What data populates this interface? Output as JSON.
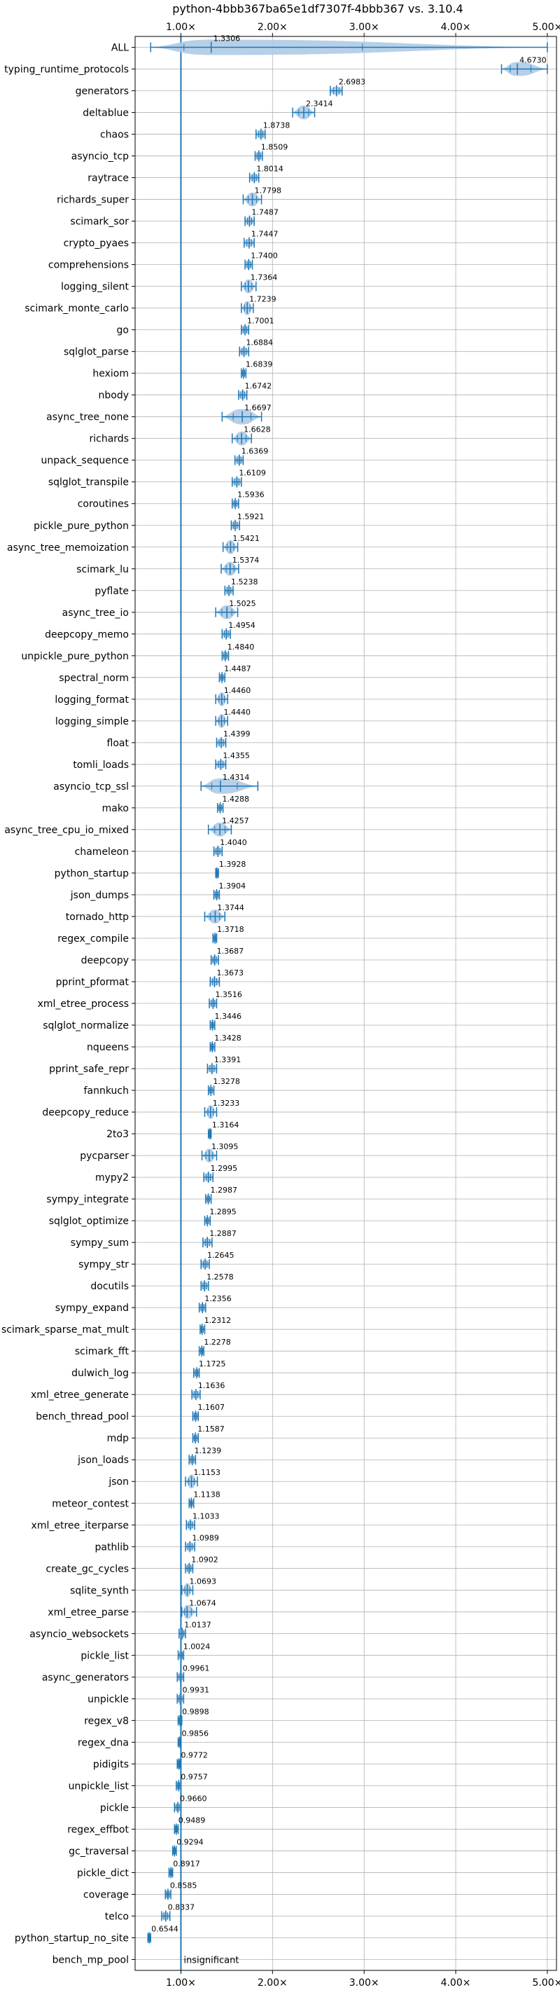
{
  "chart_data": {
    "type": "violin",
    "title": "python-4bbb367ba65e1df7307f-4bbb367 vs. 3.10.4",
    "xlim": [
      0.5,
      5.1
    ],
    "x_ticks": [
      1,
      2,
      3,
      4,
      5
    ],
    "x_tick_labels": [
      "1.00×",
      "2.00×",
      "3.00×",
      "4.00×",
      "5.00×"
    ],
    "grid": true,
    "reference_line": 1.0,
    "insignificant_label": "insignificant",
    "benchmarks": [
      {
        "name": "ALL",
        "value": 1.3306,
        "label": "1.3306",
        "lo": 0.67,
        "hi": 5.0,
        "spread": "wide"
      },
      {
        "name": "typing_runtime_protocols",
        "value": 4.673,
        "label": "4.6730",
        "lo": 4.5,
        "hi": 5.0,
        "spread": "med"
      },
      {
        "name": "generators",
        "value": 2.6983,
        "label": "2.6983",
        "lo": 2.63,
        "hi": 2.76,
        "spread": "small"
      },
      {
        "name": "deltablue",
        "value": 2.3414,
        "label": "2.3414",
        "lo": 2.22,
        "hi": 2.46,
        "spread": "med"
      },
      {
        "name": "chaos",
        "value": 1.8738,
        "label": "1.8738",
        "lo": 1.82,
        "hi": 1.92,
        "spread": "small"
      },
      {
        "name": "asyncio_tcp",
        "value": 1.8509,
        "label": "1.8509",
        "lo": 1.81,
        "hi": 1.89,
        "spread": "small"
      },
      {
        "name": "raytrace",
        "value": 1.8014,
        "label": "1.8014",
        "lo": 1.75,
        "hi": 1.85,
        "spread": "small"
      },
      {
        "name": "richards_super",
        "value": 1.7798,
        "label": "1.7798",
        "lo": 1.68,
        "hi": 1.88,
        "spread": "med"
      },
      {
        "name": "scimark_sor",
        "value": 1.7487,
        "label": "1.7487",
        "lo": 1.7,
        "hi": 1.8,
        "spread": "small"
      },
      {
        "name": "crypto_pyaes",
        "value": 1.7447,
        "label": "1.7447",
        "lo": 1.69,
        "hi": 1.8,
        "spread": "small"
      },
      {
        "name": "comprehensions",
        "value": 1.74,
        "label": "1.7400",
        "lo": 1.7,
        "hi": 1.78,
        "spread": "small"
      },
      {
        "name": "logging_silent",
        "value": 1.7364,
        "label": "1.7364",
        "lo": 1.66,
        "hi": 1.82,
        "spread": "med"
      },
      {
        "name": "scimark_monte_carlo",
        "value": 1.7239,
        "label": "1.7239",
        "lo": 1.66,
        "hi": 1.79,
        "spread": "med"
      },
      {
        "name": "go",
        "value": 1.7001,
        "label": "1.7001",
        "lo": 1.66,
        "hi": 1.74,
        "spread": "small"
      },
      {
        "name": "sqlglot_parse",
        "value": 1.6884,
        "label": "1.6884",
        "lo": 1.64,
        "hi": 1.74,
        "spread": "small"
      },
      {
        "name": "hexiom",
        "value": 1.6839,
        "label": "1.6839",
        "lo": 1.66,
        "hi": 1.71,
        "spread": "tiny"
      },
      {
        "name": "nbody",
        "value": 1.6742,
        "label": "1.6742",
        "lo": 1.63,
        "hi": 1.72,
        "spread": "small"
      },
      {
        "name": "async_tree_none",
        "value": 1.6697,
        "label": "1.6697",
        "lo": 1.45,
        "hi": 1.88,
        "spread": "wide"
      },
      {
        "name": "richards",
        "value": 1.6628,
        "label": "1.6628",
        "lo": 1.56,
        "hi": 1.77,
        "spread": "med"
      },
      {
        "name": "unpack_sequence",
        "value": 1.6369,
        "label": "1.6369",
        "lo": 1.59,
        "hi": 1.68,
        "spread": "small"
      },
      {
        "name": "sqlglot_transpile",
        "value": 1.6109,
        "label": "1.6109",
        "lo": 1.56,
        "hi": 1.66,
        "spread": "small"
      },
      {
        "name": "coroutines",
        "value": 1.5936,
        "label": "1.5936",
        "lo": 1.56,
        "hi": 1.63,
        "spread": "tiny"
      },
      {
        "name": "pickle_pure_python",
        "value": 1.5921,
        "label": "1.5921",
        "lo": 1.55,
        "hi": 1.64,
        "spread": "small"
      },
      {
        "name": "async_tree_memoization",
        "value": 1.5421,
        "label": "1.5421",
        "lo": 1.46,
        "hi": 1.62,
        "spread": "med"
      },
      {
        "name": "scimark_lu",
        "value": 1.5374,
        "label": "1.5374",
        "lo": 1.44,
        "hi": 1.63,
        "spread": "med"
      },
      {
        "name": "pyflate",
        "value": 1.5238,
        "label": "1.5238",
        "lo": 1.48,
        "hi": 1.57,
        "spread": "small"
      },
      {
        "name": "async_tree_io",
        "value": 1.5025,
        "label": "1.5025",
        "lo": 1.38,
        "hi": 1.62,
        "spread": "med"
      },
      {
        "name": "deepcopy_memo",
        "value": 1.4954,
        "label": "1.4954",
        "lo": 1.45,
        "hi": 1.54,
        "spread": "small"
      },
      {
        "name": "unpickle_pure_python",
        "value": 1.484,
        "label": "1.4840",
        "lo": 1.45,
        "hi": 1.52,
        "spread": "small"
      },
      {
        "name": "spectral_norm",
        "value": 1.4487,
        "label": "1.4487",
        "lo": 1.42,
        "hi": 1.48,
        "spread": "tiny"
      },
      {
        "name": "logging_format",
        "value": 1.446,
        "label": "1.4460",
        "lo": 1.38,
        "hi": 1.51,
        "spread": "med"
      },
      {
        "name": "logging_simple",
        "value": 1.444,
        "label": "1.4440",
        "lo": 1.38,
        "hi": 1.51,
        "spread": "med"
      },
      {
        "name": "float",
        "value": 1.4399,
        "label": "1.4399",
        "lo": 1.39,
        "hi": 1.49,
        "spread": "small"
      },
      {
        "name": "tomli_loads",
        "value": 1.4355,
        "label": "1.4355",
        "lo": 1.38,
        "hi": 1.49,
        "spread": "small"
      },
      {
        "name": "asyncio_tcp_ssl",
        "value": 1.4314,
        "label": "1.4314",
        "lo": 1.22,
        "hi": 1.84,
        "spread": "wide"
      },
      {
        "name": "mako",
        "value": 1.4288,
        "label": "1.4288",
        "lo": 1.4,
        "hi": 1.46,
        "spread": "tiny"
      },
      {
        "name": "async_tree_cpu_io_mixed",
        "value": 1.4257,
        "label": "1.4257",
        "lo": 1.3,
        "hi": 1.55,
        "spread": "med"
      },
      {
        "name": "chameleon",
        "value": 1.404,
        "label": "1.4040",
        "lo": 1.36,
        "hi": 1.45,
        "spread": "small"
      },
      {
        "name": "python_startup",
        "value": 1.3928,
        "label": "1.3928",
        "lo": 1.38,
        "hi": 1.41,
        "spread": "tiny"
      },
      {
        "name": "json_dumps",
        "value": 1.3904,
        "label": "1.3904",
        "lo": 1.36,
        "hi": 1.42,
        "spread": "small"
      },
      {
        "name": "tornado_http",
        "value": 1.3744,
        "label": "1.3744",
        "lo": 1.26,
        "hi": 1.48,
        "spread": "med"
      },
      {
        "name": "regex_compile",
        "value": 1.3718,
        "label": "1.3718",
        "lo": 1.35,
        "hi": 1.39,
        "spread": "tiny"
      },
      {
        "name": "deepcopy",
        "value": 1.3687,
        "label": "1.3687",
        "lo": 1.33,
        "hi": 1.41,
        "spread": "small"
      },
      {
        "name": "pprint_pformat",
        "value": 1.3673,
        "label": "1.3673",
        "lo": 1.32,
        "hi": 1.42,
        "spread": "small"
      },
      {
        "name": "xml_etree_process",
        "value": 1.3516,
        "label": "1.3516",
        "lo": 1.31,
        "hi": 1.39,
        "spread": "small"
      },
      {
        "name": "sqlglot_normalize",
        "value": 1.3446,
        "label": "1.3446",
        "lo": 1.32,
        "hi": 1.37,
        "spread": "tiny"
      },
      {
        "name": "nqueens",
        "value": 1.3428,
        "label": "1.3428",
        "lo": 1.32,
        "hi": 1.37,
        "spread": "tiny"
      },
      {
        "name": "pprint_safe_repr",
        "value": 1.3391,
        "label": "1.3391",
        "lo": 1.29,
        "hi": 1.39,
        "spread": "small"
      },
      {
        "name": "fannkuch",
        "value": 1.3278,
        "label": "1.3278",
        "lo": 1.3,
        "hi": 1.36,
        "spread": "tiny"
      },
      {
        "name": "deepcopy_reduce",
        "value": 1.3233,
        "label": "1.3233",
        "lo": 1.26,
        "hi": 1.39,
        "spread": "med"
      },
      {
        "name": "2to3",
        "value": 1.3164,
        "label": "1.3164",
        "lo": 1.3,
        "hi": 1.33,
        "spread": "tiny"
      },
      {
        "name": "pycparser",
        "value": 1.3095,
        "label": "1.3095",
        "lo": 1.23,
        "hi": 1.39,
        "spread": "med"
      },
      {
        "name": "mypy2",
        "value": 1.2995,
        "label": "1.2995",
        "lo": 1.25,
        "hi": 1.35,
        "spread": "small"
      },
      {
        "name": "sympy_integrate",
        "value": 1.2987,
        "label": "1.2987",
        "lo": 1.27,
        "hi": 1.33,
        "spread": "tiny"
      },
      {
        "name": "sqlglot_optimize",
        "value": 1.2895,
        "label": "1.2895",
        "lo": 1.26,
        "hi": 1.32,
        "spread": "tiny"
      },
      {
        "name": "sympy_sum",
        "value": 1.2887,
        "label": "1.2887",
        "lo": 1.24,
        "hi": 1.34,
        "spread": "small"
      },
      {
        "name": "sympy_str",
        "value": 1.2645,
        "label": "1.2645",
        "lo": 1.22,
        "hi": 1.31,
        "spread": "small"
      },
      {
        "name": "docutils",
        "value": 1.2578,
        "label": "1.2578",
        "lo": 1.22,
        "hi": 1.3,
        "spread": "small"
      },
      {
        "name": "sympy_expand",
        "value": 1.2356,
        "label": "1.2356",
        "lo": 1.2,
        "hi": 1.27,
        "spread": "small"
      },
      {
        "name": "scimark_sparse_mat_mult",
        "value": 1.2312,
        "label": "1.2312",
        "lo": 1.21,
        "hi": 1.26,
        "spread": "tiny"
      },
      {
        "name": "scimark_fft",
        "value": 1.2278,
        "label": "1.2278",
        "lo": 1.2,
        "hi": 1.25,
        "spread": "tiny"
      },
      {
        "name": "dulwich_log",
        "value": 1.1725,
        "label": "1.1725",
        "lo": 1.14,
        "hi": 1.2,
        "spread": "small"
      },
      {
        "name": "xml_etree_generate",
        "value": 1.1636,
        "label": "1.1636",
        "lo": 1.12,
        "hi": 1.21,
        "spread": "small"
      },
      {
        "name": "bench_thread_pool",
        "value": 1.1607,
        "label": "1.1607",
        "lo": 1.13,
        "hi": 1.19,
        "spread": "small"
      },
      {
        "name": "mdp",
        "value": 1.1587,
        "label": "1.1587",
        "lo": 1.13,
        "hi": 1.19,
        "spread": "tiny"
      },
      {
        "name": "json_loads",
        "value": 1.1239,
        "label": "1.1239",
        "lo": 1.09,
        "hi": 1.16,
        "spread": "small"
      },
      {
        "name": "json",
        "value": 1.1153,
        "label": "1.1153",
        "lo": 1.05,
        "hi": 1.18,
        "spread": "med"
      },
      {
        "name": "meteor_contest",
        "value": 1.1138,
        "label": "1.1138",
        "lo": 1.09,
        "hi": 1.14,
        "spread": "tiny"
      },
      {
        "name": "xml_etree_iterparse",
        "value": 1.1033,
        "label": "1.1033",
        "lo": 1.06,
        "hi": 1.15,
        "spread": "small"
      },
      {
        "name": "pathlib",
        "value": 1.0989,
        "label": "1.0989",
        "lo": 1.05,
        "hi": 1.15,
        "spread": "small"
      },
      {
        "name": "create_gc_cycles",
        "value": 1.0902,
        "label": "1.0902",
        "lo": 1.05,
        "hi": 1.13,
        "spread": "small"
      },
      {
        "name": "sqlite_synth",
        "value": 1.0693,
        "label": "1.0693",
        "lo": 1.01,
        "hi": 1.13,
        "spread": "med"
      },
      {
        "name": "xml_etree_parse",
        "value": 1.0674,
        "label": "1.0674",
        "lo": 1.01,
        "hi": 1.17,
        "spread": "med"
      },
      {
        "name": "asyncio_websockets",
        "value": 1.0137,
        "label": "1.0137",
        "lo": 0.98,
        "hi": 1.05,
        "spread": "small"
      },
      {
        "name": "pickle_list",
        "value": 1.0024,
        "label": "1.0024",
        "lo": 0.97,
        "hi": 1.03,
        "spread": "small"
      },
      {
        "name": "async_generators",
        "value": 0.9961,
        "label": "0.9961",
        "lo": 0.96,
        "hi": 1.03,
        "spread": "small"
      },
      {
        "name": "unpickle",
        "value": 0.9931,
        "label": "0.9931",
        "lo": 0.96,
        "hi": 1.03,
        "spread": "small"
      },
      {
        "name": "regex_v8",
        "value": 0.9898,
        "label": "0.9898",
        "lo": 0.97,
        "hi": 1.01,
        "spread": "tiny"
      },
      {
        "name": "regex_dna",
        "value": 0.9856,
        "label": "0.9856",
        "lo": 0.97,
        "hi": 1.0,
        "spread": "tiny"
      },
      {
        "name": "pidigits",
        "value": 0.9772,
        "label": "0.9772",
        "lo": 0.96,
        "hi": 0.99,
        "spread": "tiny"
      },
      {
        "name": "unpickle_list",
        "value": 0.9757,
        "label": "0.9757",
        "lo": 0.95,
        "hi": 1.0,
        "spread": "small"
      },
      {
        "name": "pickle",
        "value": 0.966,
        "label": "0.9660",
        "lo": 0.93,
        "hi": 1.0,
        "spread": "small"
      },
      {
        "name": "regex_effbot",
        "value": 0.9489,
        "label": "0.9489",
        "lo": 0.93,
        "hi": 0.97,
        "spread": "tiny"
      },
      {
        "name": "gc_traversal",
        "value": 0.9294,
        "label": "0.9294",
        "lo": 0.91,
        "hi": 0.95,
        "spread": "tiny"
      },
      {
        "name": "pickle_dict",
        "value": 0.8917,
        "label": "0.8917",
        "lo": 0.87,
        "hi": 0.91,
        "spread": "tiny"
      },
      {
        "name": "coverage",
        "value": 0.8585,
        "label": "0.8585",
        "lo": 0.83,
        "hi": 0.89,
        "spread": "small"
      },
      {
        "name": "telco",
        "value": 0.8337,
        "label": "0.8337",
        "lo": 0.79,
        "hi": 0.88,
        "spread": "small"
      },
      {
        "name": "python_startup_no_site",
        "value": 0.6544,
        "label": "0.6544",
        "lo": 0.64,
        "hi": 0.67,
        "spread": "tiny"
      },
      {
        "name": "bench_mp_pool",
        "value": null,
        "label": "insignificant",
        "lo": null,
        "hi": null,
        "spread": "none"
      }
    ],
    "colors": {
      "violin_fill": "#aecbe6",
      "mark": "#1f77b4",
      "grid": "#b0b0b0",
      "axis": "#000000",
      "reference": "#1f77b4"
    }
  }
}
